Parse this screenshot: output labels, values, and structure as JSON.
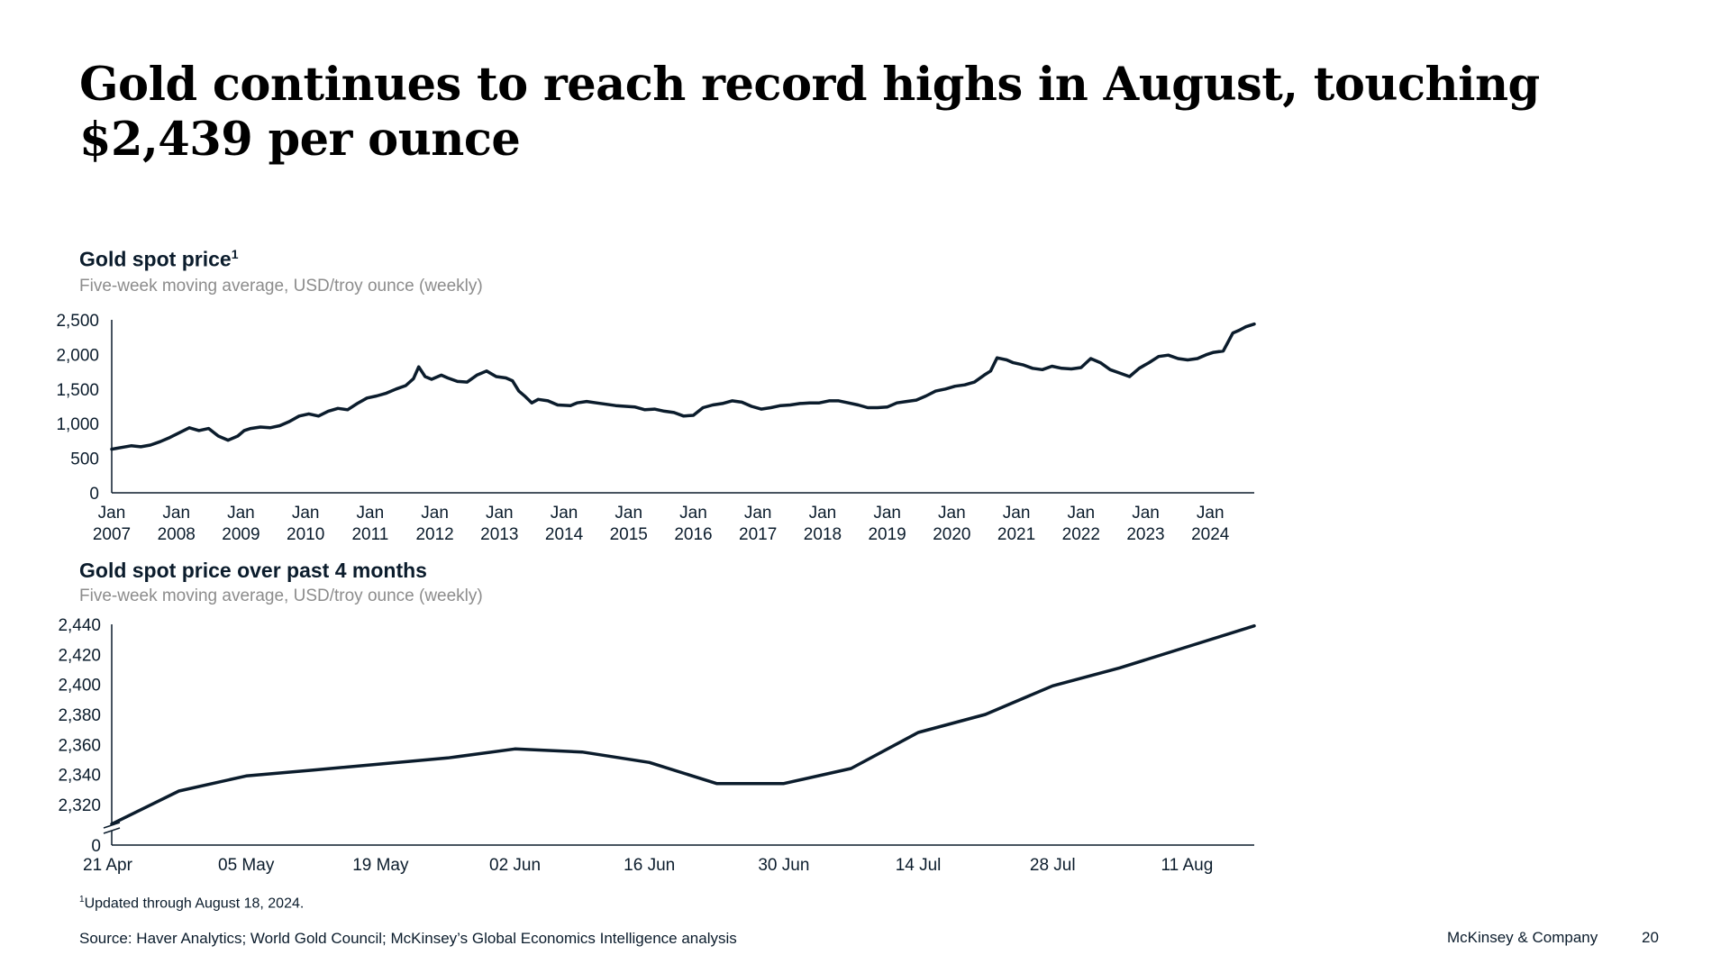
{
  "slide": {
    "headline": "Gold continues to reach record highs in August, touching $2,439 per ounce",
    "footnote_mark": "1",
    "footnote_text": "Updated through August 18, 2024.",
    "source": "Source: Haver Analytics; World Gold Council; McKinsey’s Global Economics Intelligence analysis",
    "brand": "McKinsey & Company",
    "page_number": "20"
  },
  "colors": {
    "line": "#0b1c2c",
    "axis": "#0b1c2c",
    "subtitle": "#8c8c8c"
  },
  "chart_data": [
    {
      "type": "line",
      "title": "Gold spot price",
      "title_footnote": "1",
      "subtitle": "Five-week moving average, USD/troy ounce (weekly)",
      "grid": false,
      "ylim": [
        0,
        2500
      ],
      "y_ticks": [
        "0",
        "500",
        "1,000",
        "1,500",
        "2,000",
        "2,500"
      ],
      "y_tick_values": [
        0,
        500,
        1000,
        1500,
        2000,
        2500
      ],
      "x_ticks": [
        [
          "Jan",
          "2007"
        ],
        [
          "Jan",
          "2008"
        ],
        [
          "Jan",
          "2009"
        ],
        [
          "Jan",
          "2010"
        ],
        [
          "Jan",
          "2011"
        ],
        [
          "Jan",
          "2012"
        ],
        [
          "Jan",
          "2013"
        ],
        [
          "Jan",
          "2014"
        ],
        [
          "Jan",
          "2015"
        ],
        [
          "Jan",
          "2016"
        ],
        [
          "Jan",
          "2017"
        ],
        [
          "Jan",
          "2018"
        ],
        [
          "Jan",
          "2019"
        ],
        [
          "Jan",
          "2020"
        ],
        [
          "Jan",
          "2021"
        ],
        [
          "Jan",
          "2022"
        ],
        [
          "Jan",
          "2023"
        ],
        [
          "Jan",
          "2024"
        ]
      ],
      "x_tick_years": [
        2007,
        2008,
        2009,
        2010,
        2011,
        2012,
        2013,
        2014,
        2015,
        2016,
        2017,
        2018,
        2019,
        2020,
        2021,
        2022,
        2023,
        2024
      ],
      "xlim": [
        2007.0,
        2024.68
      ],
      "series": [
        {
          "x": [
            2007.0,
            2007.15,
            2007.3,
            2007.45,
            2007.6,
            2007.75,
            2007.9,
            2008.05,
            2008.2,
            2008.35,
            2008.5,
            2008.65,
            2008.8,
            2008.95,
            2009.05,
            2009.15,
            2009.3,
            2009.45,
            2009.6,
            2009.75,
            2009.9,
            2010.05,
            2010.2,
            2010.35,
            2010.5,
            2010.65,
            2010.8,
            2010.95,
            2011.1,
            2011.25,
            2011.4,
            2011.55,
            2011.67,
            2011.75,
            2011.85,
            2011.95,
            2012.1,
            2012.2,
            2012.35,
            2012.5,
            2012.65,
            2012.8,
            2012.95,
            2013.1,
            2013.2,
            2013.3,
            2013.4,
            2013.5,
            2013.6,
            2013.75,
            2013.9,
            2014.1,
            2014.2,
            2014.35,
            2014.5,
            2014.65,
            2014.8,
            2014.95,
            2015.1,
            2015.25,
            2015.4,
            2015.55,
            2015.7,
            2015.85,
            2016.0,
            2016.15,
            2016.3,
            2016.45,
            2016.6,
            2016.75,
            2016.9,
            2017.05,
            2017.2,
            2017.35,
            2017.5,
            2017.65,
            2017.8,
            2017.95,
            2018.1,
            2018.25,
            2018.4,
            2018.55,
            2018.7,
            2018.85,
            2019.0,
            2019.15,
            2019.3,
            2019.45,
            2019.6,
            2019.75,
            2019.9,
            2020.05,
            2020.2,
            2020.35,
            2020.5,
            2020.6,
            2020.7,
            2020.85,
            2020.95,
            2021.1,
            2021.25,
            2021.4,
            2021.55,
            2021.7,
            2021.85,
            2022.0,
            2022.15,
            2022.3,
            2022.45,
            2022.6,
            2022.75,
            2022.9,
            2023.05,
            2023.2,
            2023.35,
            2023.5,
            2023.65,
            2023.8,
            2023.95,
            2024.05,
            2024.2,
            2024.35,
            2024.45,
            2024.55,
            2024.62,
            2024.68
          ],
          "y": [
            630,
            655,
            680,
            665,
            690,
            740,
            800,
            870,
            940,
            900,
            930,
            820,
            760,
            820,
            900,
            930,
            950,
            940,
            970,
            1030,
            1110,
            1140,
            1110,
            1180,
            1220,
            1200,
            1290,
            1370,
            1400,
            1440,
            1500,
            1550,
            1650,
            1820,
            1680,
            1640,
            1700,
            1660,
            1610,
            1600,
            1700,
            1760,
            1680,
            1660,
            1620,
            1470,
            1390,
            1300,
            1350,
            1330,
            1270,
            1260,
            1300,
            1320,
            1300,
            1280,
            1260,
            1250,
            1240,
            1200,
            1210,
            1180,
            1160,
            1110,
            1120,
            1230,
            1270,
            1290,
            1330,
            1310,
            1250,
            1210,
            1230,
            1260,
            1270,
            1290,
            1300,
            1300,
            1330,
            1330,
            1300,
            1270,
            1230,
            1230,
            1240,
            1300,
            1320,
            1340,
            1400,
            1470,
            1500,
            1540,
            1560,
            1600,
            1700,
            1760,
            1950,
            1920,
            1880,
            1850,
            1800,
            1780,
            1830,
            1800,
            1790,
            1810,
            1940,
            1880,
            1780,
            1730,
            1680,
            1800,
            1880,
            1970,
            1990,
            1940,
            1920,
            1940,
            2000,
            2030,
            2050,
            2310,
            2350,
            2400,
            2420,
            2439
          ]
        }
      ]
    },
    {
      "type": "line",
      "title": "Gold spot price over past 4 months",
      "subtitle": "Five-week moving average, USD/troy ounce (weekly)",
      "grid": false,
      "axis_break": true,
      "ylim": [
        2300,
        2440
      ],
      "y_ticks": [
        "0",
        "2,320",
        "2,340",
        "2,360",
        "2,380",
        "2,400",
        "2,420",
        "2,440"
      ],
      "y_tick_values": [
        2320,
        2340,
        2360,
        2380,
        2400,
        2420,
        2440
      ],
      "x_ticks": [
        "21 Apr",
        "05 May",
        "19 May",
        "02 Jun",
        "16 Jun",
        "30 Jun",
        "14 Jul",
        "28 Jul",
        "11 Aug"
      ],
      "x": [
        "21 Apr",
        "28 Apr",
        "05 May",
        "12 May",
        "19 May",
        "26 May",
        "02 Jun",
        "09 Jun",
        "16 Jun",
        "23 Jun",
        "30 Jun",
        "07 Jul",
        "14 Jul",
        "21 Jul",
        "28 Jul",
        "04 Aug",
        "11 Aug",
        "18 Aug"
      ],
      "series": [
        {
          "values": [
            2307,
            2329,
            2339,
            2343,
            2347,
            2351,
            2357,
            2355,
            2348,
            2334,
            2334,
            2344,
            2368,
            2380,
            2399,
            2411,
            2425,
            2439
          ]
        }
      ]
    }
  ]
}
